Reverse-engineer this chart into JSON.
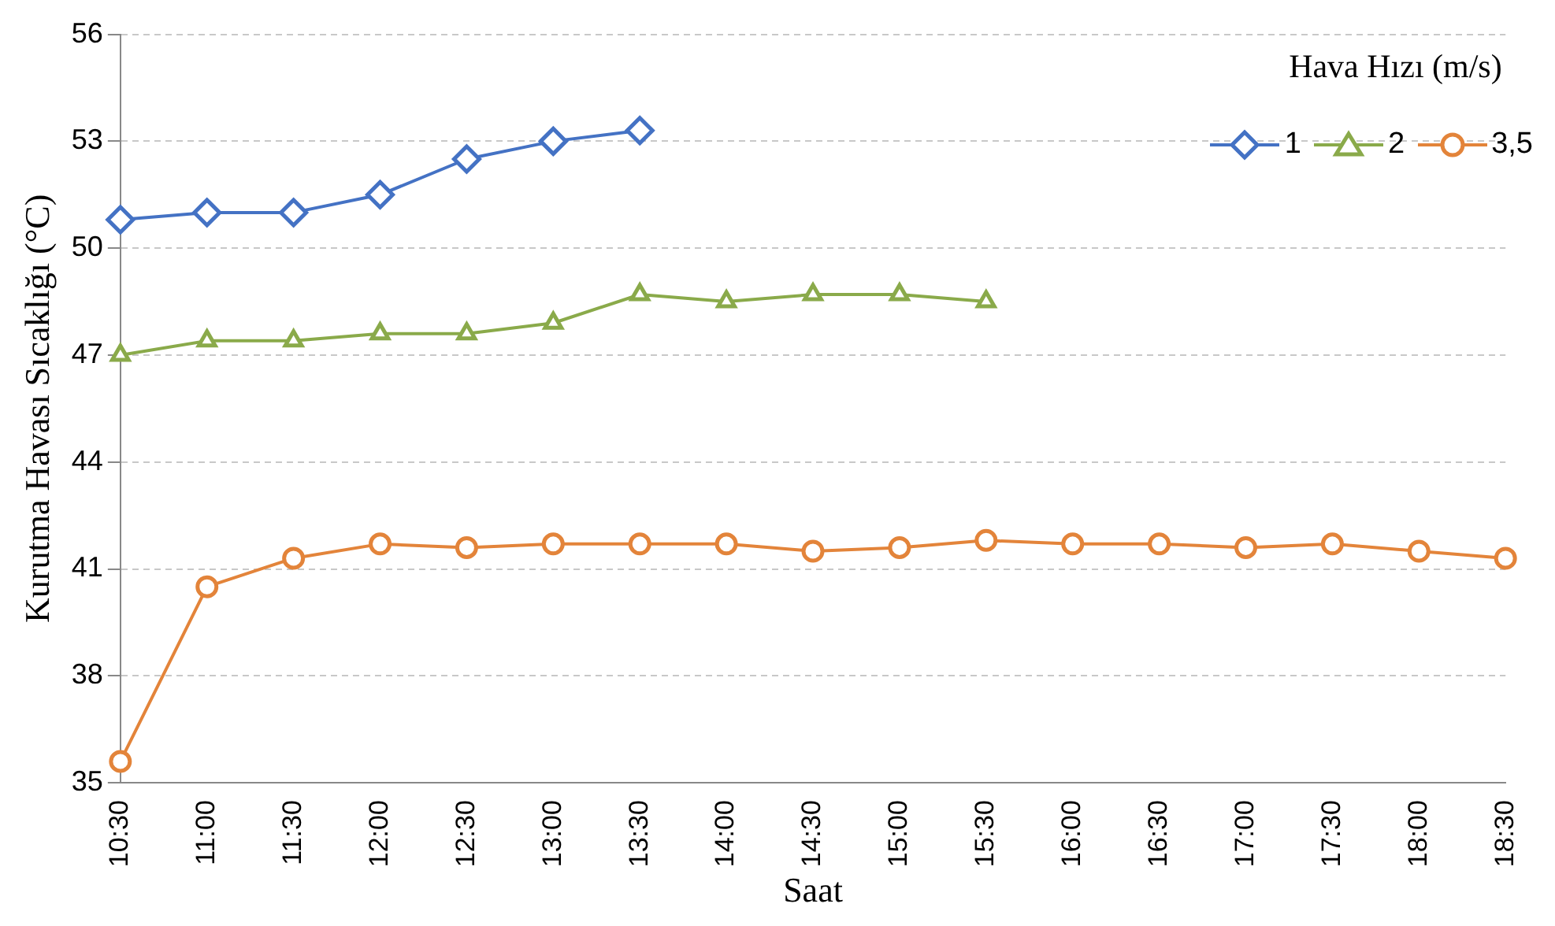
{
  "chart_data": {
    "type": "line",
    "xlabel": "Saat",
    "ylabel": "Kurutma Havası Sıcaklığı (°C)",
    "legend_title": "Hava Hızı (m/s)",
    "categories": [
      "10:30",
      "11:00",
      "11:30",
      "12:00",
      "12:30",
      "13:00",
      "13:30",
      "14:00",
      "14:30",
      "15:00",
      "15:30",
      "16:00",
      "16:30",
      "17:00",
      "17:30",
      "18:00",
      "18:30"
    ],
    "series": [
      {
        "name": "1",
        "color": "#4472c4",
        "marker": "diamond",
        "values": [
          50.8,
          51.0,
          51.0,
          51.5,
          52.5,
          53.0,
          53.3,
          null,
          null,
          null,
          null,
          null,
          null,
          null,
          null,
          null,
          null
        ]
      },
      {
        "name": "2",
        "color": "#8aaa4a",
        "marker": "triangle",
        "values": [
          47.0,
          47.4,
          47.4,
          47.6,
          47.6,
          47.9,
          48.7,
          48.5,
          48.7,
          48.7,
          48.5,
          null,
          null,
          null,
          null,
          null,
          null
        ]
      },
      {
        "name": "3,5",
        "color": "#e3843a",
        "marker": "circle",
        "values": [
          35.6,
          40.5,
          41.3,
          41.7,
          41.6,
          41.7,
          41.7,
          41.7,
          41.5,
          41.6,
          41.8,
          41.7,
          41.7,
          41.6,
          41.7,
          41.5,
          41.3
        ]
      }
    ],
    "ylim": [
      35,
      56
    ],
    "yticks": [
      35,
      38,
      41,
      44,
      47,
      50,
      53,
      56
    ],
    "grid": "y",
    "legend": "top right",
    "line_style": "solid"
  }
}
